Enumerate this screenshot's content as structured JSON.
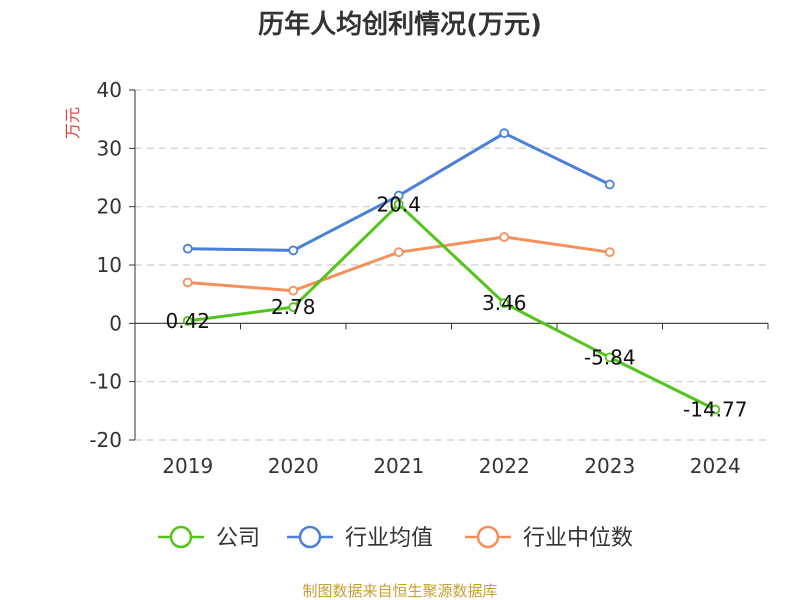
{
  "chart_data": {
    "type": "line",
    "title": "历年人均创利情况(万元)",
    "ylabel": "万元",
    "categories": [
      "2019",
      "2020",
      "2021",
      "2022",
      "2023",
      "2024"
    ],
    "ylim": [
      -20,
      40
    ],
    "yticks": [
      -20,
      -10,
      0,
      10,
      20,
      30,
      40
    ],
    "grid": true,
    "legend_position": "bottom",
    "series": [
      {
        "name": "公司",
        "color": "#52c41a",
        "values": [
          0.42,
          2.78,
          20.4,
          3.46,
          -5.84,
          -14.77
        ],
        "labels": [
          "0.42",
          "2.78",
          "20.4",
          "3.46",
          "-5.84",
          "-14.77"
        ]
      },
      {
        "name": "行业均值",
        "color": "#4a7fdb",
        "values": [
          12.8,
          12.5,
          21.9,
          32.6,
          23.8,
          null
        ]
      },
      {
        "name": "行业中位数",
        "color": "#f5905a",
        "values": [
          7.0,
          5.6,
          12.2,
          14.8,
          12.2,
          null
        ]
      }
    ]
  },
  "unit_color": "#e03c3c",
  "source": {
    "text": "制图数据来自恒生聚源数据库",
    "color": "#c8a032"
  }
}
